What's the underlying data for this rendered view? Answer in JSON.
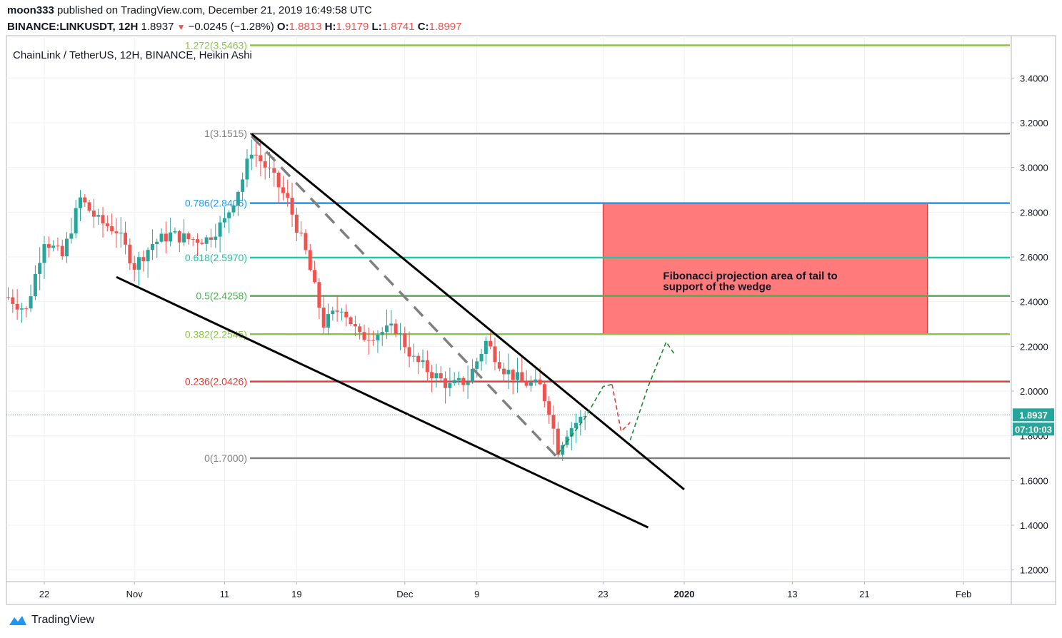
{
  "header": {
    "author": "moon333",
    "published_text": "published on TradingView.com, December 21, 2019 16:49:58 UTC",
    "symbol": "BINANCE:LINKUSDT, 12H",
    "last": "1.8937",
    "change": "−0.0245 (−1.28%)",
    "o_label": "O:",
    "o_value": "1.8813",
    "h_label": "H:",
    "h_value": "1.9179",
    "l_label": "L:",
    "l_value": "1.8741",
    "c_label": "C:",
    "c_value": "1.8997"
  },
  "footer": {
    "brand": "TradingView"
  },
  "colors": {
    "up": "#26a69a",
    "down": "#ef5350",
    "grid": "#eef0f3",
    "fib_gray": "#808080",
    "fib_blue": "#2196f3",
    "fib_teal": "#26c6a0",
    "fib_green": "#4caf50",
    "fib_lime": "#8bc34a",
    "fib_red": "#e53935",
    "zone": "#ff7b7b"
  },
  "chart_data": {
    "type": "candlestick",
    "title": "ChainLink / TetherUS, 12H, BINANCE, Heikin Ashi",
    "x_ticks": [
      {
        "label": "22",
        "date": "2019-10-22"
      },
      {
        "label": "Nov",
        "date": "2019-11-01"
      },
      {
        "label": "11",
        "date": "2019-11-11"
      },
      {
        "label": "19",
        "date": "2019-11-19"
      },
      {
        "label": "Dec",
        "date": "2019-12-01"
      },
      {
        "label": "9",
        "date": "2019-12-09"
      },
      {
        "label": "23",
        "date": "2019-12-23"
      },
      {
        "label": "2020",
        "date": "2020-01-01"
      },
      {
        "label": "13",
        "date": "2020-01-13"
      },
      {
        "label": "21",
        "date": "2020-01-21"
      },
      {
        "label": "Feb",
        "date": "2020-02-01"
      }
    ],
    "y_ticks": [
      "1.2000",
      "1.4000",
      "1.6000",
      "1.8000",
      "2.0000",
      "2.2000",
      "2.4000",
      "2.6000",
      "2.8000",
      "3.0000",
      "3.2000",
      "3.4000"
    ],
    "ylim": [
      1.15,
      3.58
    ],
    "last_price": {
      "value": 1.8937,
      "label": "1.8937",
      "countdown": "07:10:03"
    },
    "fib_levels": [
      {
        "label": "1.272(3.5463)",
        "value": 3.5463,
        "color": "#8bc34a"
      },
      {
        "label": "1(3.1515)",
        "value": 3.1515,
        "color": "#808080"
      },
      {
        "label": "0.786(2.8405)",
        "value": 2.8405,
        "color": "#2196f3"
      },
      {
        "label": "0.618(2.5970)",
        "value": 2.597,
        "color": "#26c6a0"
      },
      {
        "label": "0.5(2.4258)",
        "value": 2.4258,
        "color": "#4caf50"
      },
      {
        "label": "0.382(2.2545)",
        "value": 2.2545,
        "color": "#8bc34a"
      },
      {
        "label": "0.236(2.0426)",
        "value": 2.0426,
        "color": "#e53935"
      },
      {
        "label": "0(1.7000)",
        "value": 1.7,
        "color": "#808080"
      }
    ],
    "annotation": {
      "text_line1": "Fibonacci projection area of tail to",
      "text_line2": "support of the wedge",
      "zone_top": 2.8405,
      "zone_bottom": 2.2545,
      "zone_from": "2019-12-23",
      "zone_to": "2020-01-28"
    },
    "price_path": [
      [
        "2019-10-18",
        2.42
      ],
      [
        "2019-10-20",
        2.36
      ],
      [
        "2019-10-22",
        2.68
      ],
      [
        "2019-10-24",
        2.6
      ],
      [
        "2019-10-26",
        2.86
      ],
      [
        "2019-10-28",
        2.76
      ],
      [
        "2019-10-30",
        2.72
      ],
      [
        "2019-11-01",
        2.56
      ],
      [
        "2019-11-03",
        2.66
      ],
      [
        "2019-11-05",
        2.7
      ],
      [
        "2019-11-07",
        2.68
      ],
      [
        "2019-11-09",
        2.68
      ],
      [
        "2019-11-11",
        2.76
      ],
      [
        "2019-11-13",
        2.95
      ],
      [
        "2019-11-14",
        3.08
      ],
      [
        "2019-11-16",
        2.98
      ],
      [
        "2019-11-18",
        2.85
      ],
      [
        "2019-11-20",
        2.62
      ],
      [
        "2019-11-22",
        2.3
      ],
      [
        "2019-11-24",
        2.38
      ],
      [
        "2019-11-26",
        2.24
      ],
      [
        "2019-11-28",
        2.26
      ],
      [
        "2019-11-30",
        2.28
      ],
      [
        "2019-12-02",
        2.14
      ],
      [
        "2019-12-04",
        2.08
      ],
      [
        "2019-12-06",
        2.02
      ],
      [
        "2019-12-08",
        2.05
      ],
      [
        "2019-12-10",
        2.22
      ],
      [
        "2019-12-12",
        2.1
      ],
      [
        "2019-12-14",
        2.04
      ],
      [
        "2019-12-16",
        2.02
      ],
      [
        "2019-12-17",
        1.92
      ],
      [
        "2019-12-18",
        1.74
      ],
      [
        "2019-12-19",
        1.82
      ],
      [
        "2019-12-20",
        1.86
      ],
      [
        "2019-12-21",
        1.89
      ]
    ],
    "wedge_upper": [
      [
        "2019-11-14",
        3.15
      ],
      [
        "2020-01-01",
        1.56
      ]
    ],
    "wedge_lower": [
      [
        "2019-10-30",
        2.51
      ],
      [
        "2019-12-28",
        1.39
      ]
    ],
    "dashed_trend": [
      [
        "2019-11-14",
        3.14
      ],
      [
        "2019-12-18",
        1.7
      ]
    ],
    "projection_green_1": [
      [
        "2019-12-18",
        1.72
      ],
      [
        "2019-12-21",
        1.88
      ],
      [
        "2019-12-23",
        2.02
      ],
      [
        "2019-12-24",
        2.03
      ]
    ],
    "projection_red": [
      [
        "2019-12-24",
        2.03
      ],
      [
        "2019-12-25",
        1.82
      ],
      [
        "2019-12-26",
        1.86
      ]
    ],
    "projection_green_2": [
      [
        "2019-12-26",
        1.78
      ],
      [
        "2019-12-28",
        2.02
      ],
      [
        "2019-12-30",
        2.22
      ],
      [
        "2019-12-31",
        2.16
      ]
    ]
  }
}
